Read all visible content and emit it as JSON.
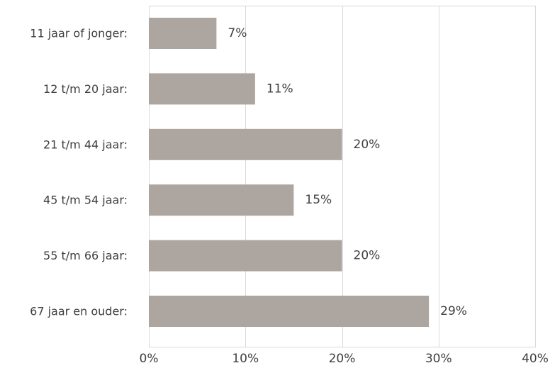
{
  "chart_data": {
    "type": "bar",
    "orientation": "horizontal",
    "title": "",
    "xlabel": "",
    "ylabel": "",
    "categories": [
      "11 jaar of jonger:",
      "12 t/m 20 jaar:",
      "21 t/m 44 jaar:",
      "45 t/m 54 jaar:",
      "55 t/m 66 jaar:",
      "67 jaar en ouder:"
    ],
    "values": [
      7,
      11,
      20,
      15,
      20,
      29
    ],
    "value_labels": [
      "7%",
      "11%",
      "20%",
      "15%",
      "20%",
      "29%"
    ],
    "xlim": [
      0,
      40
    ],
    "x_ticks": [
      0,
      10,
      20,
      30,
      40
    ],
    "x_tick_labels": [
      "0%",
      "10%",
      "20%",
      "30%",
      "40%"
    ],
    "grid": true,
    "legend": "none",
    "colors": {
      "bar": "#ada59f",
      "grid": "#d9d9d9",
      "text": "#404040"
    }
  }
}
